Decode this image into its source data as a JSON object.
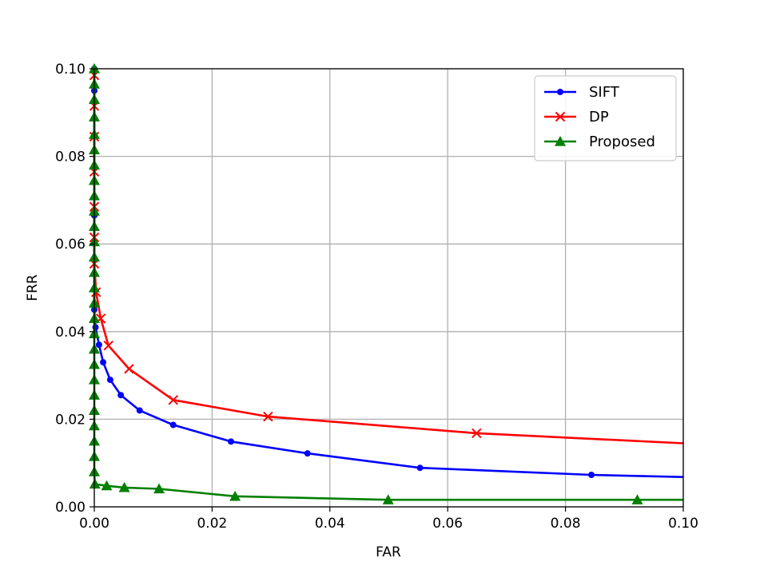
{
  "chart_data": {
    "type": "line",
    "title": "",
    "xlabel": "FAR",
    "ylabel": "FRR",
    "xlim": [
      0,
      0.1
    ],
    "ylim": [
      0,
      0.1
    ],
    "xticks": [
      "0.00",
      "0.02",
      "0.04",
      "0.06",
      "0.08",
      "0.10"
    ],
    "yticks": [
      "0.00",
      "0.02",
      "0.04",
      "0.06",
      "0.08",
      "0.10"
    ],
    "grid": true,
    "legend_position": "top-right",
    "series": [
      {
        "name": "SIFT",
        "color": "#0000ff",
        "marker": "circle",
        "points": [
          [
            0,
            0.1
          ],
          [
            0,
            0.095
          ],
          [
            0,
            0.0665
          ],
          [
            0,
            0.045
          ],
          [
            0.0002,
            0.041
          ],
          [
            0.0008,
            0.037
          ],
          [
            0.0015,
            0.033
          ],
          [
            0.0027,
            0.029
          ],
          [
            0.0045,
            0.0255
          ],
          [
            0.0077,
            0.022
          ],
          [
            0.0134,
            0.0187
          ],
          [
            0.0232,
            0.0149
          ],
          [
            0.0362,
            0.0122
          ],
          [
            0.0553,
            0.0089
          ],
          [
            0.0844,
            0.0073
          ],
          [
            0.1,
            0.0068
          ]
        ]
      },
      {
        "name": "DP",
        "color": "#ff0000",
        "marker": "x",
        "points": [
          [
            0,
            0.0985
          ],
          [
            0,
            0.0915
          ],
          [
            0,
            0.0845
          ],
          [
            0,
            0.0765
          ],
          [
            0,
            0.0685
          ],
          [
            0,
            0.0615
          ],
          [
            0,
            0.0555
          ],
          [
            0.0003,
            0.049
          ],
          [
            0.0011,
            0.043
          ],
          [
            0.0024,
            0.0368
          ],
          [
            0.0059,
            0.0315
          ],
          [
            0.0134,
            0.0244
          ],
          [
            0.0295,
            0.0206
          ],
          [
            0.0649,
            0.0168
          ],
          [
            0.1,
            0.0145
          ]
        ]
      },
      {
        "name": "Proposed",
        "color": "#008000",
        "marker": "triangle",
        "points": [
          [
            0,
            0.1
          ],
          [
            0,
            0.0965
          ],
          [
            0,
            0.093
          ],
          [
            0,
            0.089
          ],
          [
            0,
            0.085
          ],
          [
            0,
            0.0815
          ],
          [
            0,
            0.078
          ],
          [
            0,
            0.0745
          ],
          [
            0,
            0.071
          ],
          [
            0,
            0.0675
          ],
          [
            0,
            0.064
          ],
          [
            0,
            0.0605
          ],
          [
            0,
            0.057
          ],
          [
            0,
            0.0535
          ],
          [
            0,
            0.05
          ],
          [
            0,
            0.0465
          ],
          [
            0,
            0.043
          ],
          [
            0,
            0.0395
          ],
          [
            0,
            0.036
          ],
          [
            0,
            0.0325
          ],
          [
            0,
            0.029
          ],
          [
            0,
            0.0255
          ],
          [
            0,
            0.022
          ],
          [
            0,
            0.0185
          ],
          [
            0,
            0.015
          ],
          [
            0,
            0.0115
          ],
          [
            0,
            0.008
          ],
          [
            0.0001,
            0.0052
          ],
          [
            0.0021,
            0.0048
          ],
          [
            0.0051,
            0.0044
          ],
          [
            0.011,
            0.0041
          ],
          [
            0.0239,
            0.0024
          ],
          [
            0.0499,
            0.0016
          ],
          [
            0.0922,
            0.0016
          ],
          [
            0.1,
            0.0016
          ]
        ]
      }
    ]
  }
}
